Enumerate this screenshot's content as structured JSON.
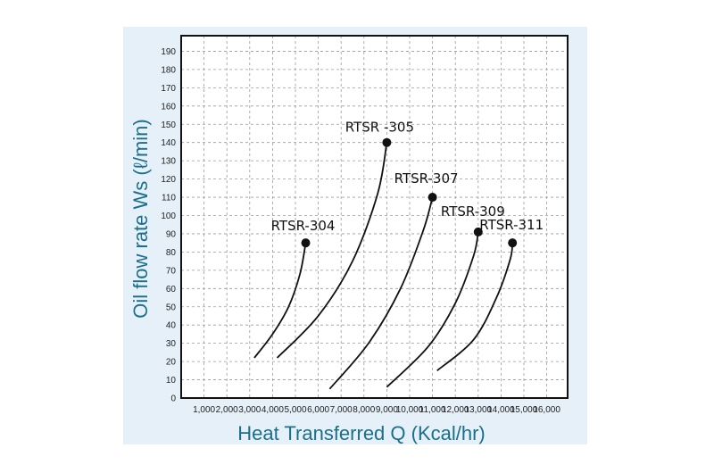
{
  "chart_data": {
    "type": "line",
    "xlabel": "Heat Transferred Q (Kcal/hr)",
    "ylabel": "Oil flow rate Ws (ℓ/min)",
    "xlim": [
      0,
      16000
    ],
    "ylim": [
      0,
      195
    ],
    "x_ticks": [
      "1,000",
      "2,000",
      "3,000",
      "4,000",
      "5,000",
      "6,000",
      "7,000",
      "8,000",
      "9,000",
      "10,000",
      "11,000",
      "12,000",
      "13,000",
      "14,000",
      "15,000",
      "16,000"
    ],
    "y_ticks": [
      "0",
      "10",
      "20",
      "30",
      "40",
      "50",
      "60",
      "70",
      "80",
      "90",
      "100",
      "110",
      "120",
      "130",
      "140",
      "150",
      "160",
      "170",
      "180",
      "190"
    ],
    "grid": true,
    "series": [
      {
        "name": "RTSR-304",
        "x": [
          3200,
          4000,
          4700,
          5200,
          5450
        ],
        "y": [
          22,
          35,
          50,
          68,
          85
        ],
        "endpoint": [
          5450,
          85
        ]
      },
      {
        "name": "RTSR -305",
        "x": [
          4200,
          6000,
          7500,
          8600,
          9000
        ],
        "y": [
          22,
          45,
          75,
          112,
          140
        ],
        "endpoint": [
          9000,
          140
        ]
      },
      {
        "name": "RTSR-307",
        "x": [
          6500,
          8200,
          9600,
          10600,
          11000
        ],
        "y": [
          5,
          30,
          60,
          92,
          110
        ],
        "endpoint": [
          11000,
          110
        ]
      },
      {
        "name": "RTSR-309",
        "x": [
          9000,
          10800,
          12000,
          12800,
          13000
        ],
        "y": [
          6,
          28,
          52,
          78,
          91
        ],
        "endpoint": [
          13000,
          91
        ]
      },
      {
        "name": "RTSR-311",
        "x": [
          11200,
          12800,
          13800,
          14400,
          14500
        ],
        "y": [
          15,
          32,
          55,
          76,
          85
        ],
        "endpoint": [
          14500,
          85
        ]
      }
    ],
    "colors": {
      "axis_title": "#1b6f8a",
      "panel": "#e6f0f8",
      "grid": "#9a9a9a",
      "line": "#111111"
    }
  }
}
